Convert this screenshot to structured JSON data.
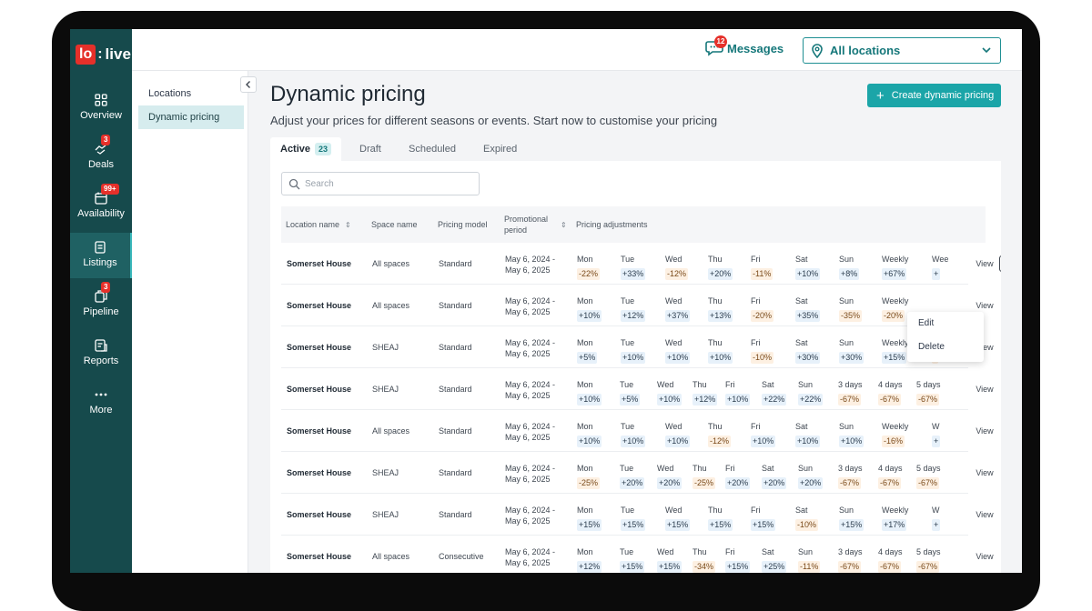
{
  "logo": {
    "lo": "lo",
    "live": "live"
  },
  "nav": [
    {
      "label": "Overview",
      "icon": "grid-icon",
      "badge": ""
    },
    {
      "label": "Deals",
      "icon": "handshake-icon",
      "badge": "3"
    },
    {
      "label": "Availability",
      "icon": "calendar-icon",
      "badge": "99+"
    },
    {
      "label": "Listings",
      "icon": "document-icon",
      "badge": ""
    },
    {
      "label": "Pipeline",
      "icon": "pipeline-icon",
      "badge": "3"
    },
    {
      "label": "Reports",
      "icon": "report-icon",
      "badge": ""
    },
    {
      "label": "More",
      "icon": "more-icon",
      "badge": ""
    }
  ],
  "topbar": {
    "messages_label": "Messages",
    "messages_count": "12",
    "location_selected": "All locations"
  },
  "sidebar": {
    "items": [
      "Locations",
      "Dynamic pricing"
    ]
  },
  "page": {
    "title": "Dynamic pricing",
    "subtitle": "Adjust your prices for different seasons or events. Start now to customise your pricing",
    "create_label": "Create dynamic pricing"
  },
  "tabs": [
    {
      "label": "Active",
      "count": "23"
    },
    {
      "label": "Draft",
      "count": ""
    },
    {
      "label": "Scheduled",
      "count": ""
    },
    {
      "label": "Expired",
      "count": ""
    }
  ],
  "search": {
    "placeholder": "Search"
  },
  "table": {
    "headers": [
      "Location name",
      "Space name",
      "Pricing model",
      "Promotional period",
      "Pricing adjustments"
    ],
    "view_label": "View",
    "menu": [
      "Edit",
      "Delete"
    ],
    "rows": [
      {
        "location": "Somerset House",
        "space": "All spaces",
        "model": "Standard",
        "period": [
          "May 6, 2024 -",
          "May 6, 2025"
        ],
        "adjustments": [
          [
            "Mon",
            "-22%"
          ],
          [
            "Tue",
            "+33%"
          ],
          [
            "Wed",
            "-12%"
          ],
          [
            "Thu",
            "+20%"
          ],
          [
            "Fri",
            "-11%"
          ],
          [
            "Sat",
            "+10%"
          ],
          [
            "Sun",
            "+8%"
          ],
          [
            "Weekly",
            "+67%"
          ],
          [
            "Wee",
            "+"
          ]
        ]
      },
      {
        "location": "Somerset House",
        "space": "All spaces",
        "model": "Standard",
        "period": [
          "May 6, 2024 -",
          "May 6, 2025"
        ],
        "adjustments": [
          [
            "Mon",
            "+10%"
          ],
          [
            "Tue",
            "+12%"
          ],
          [
            "Wed",
            "+37%"
          ],
          [
            "Thu",
            "+13%"
          ],
          [
            "Fri",
            "-20%"
          ],
          [
            "Sat",
            "+35%"
          ],
          [
            "Sun",
            "-35%"
          ],
          [
            "Weekly",
            "-20%"
          ]
        ]
      },
      {
        "location": "Somerset House",
        "space": "SHEAJ",
        "model": "Standard",
        "period": [
          "May 6, 2024 -",
          "May 6, 2025"
        ],
        "adjustments": [
          [
            "Mon",
            "+5%"
          ],
          [
            "Tue",
            "+10%"
          ],
          [
            "Wed",
            "+10%"
          ],
          [
            "Thu",
            "+10%"
          ],
          [
            "Fri",
            "-10%"
          ],
          [
            "Sat",
            "+30%"
          ],
          [
            "Sun",
            "+30%"
          ],
          [
            "Weekly",
            "+15%"
          ],
          [
            "W",
            "-"
          ]
        ]
      },
      {
        "location": "Somerset House",
        "space": "SHEAJ",
        "model": "Standard",
        "period": [
          "May 6, 2024 -",
          "May 6, 2025"
        ],
        "adjustments": [
          [
            "Mon",
            "+10%"
          ],
          [
            "Tue",
            "+5%"
          ],
          [
            "Wed",
            "+10%"
          ],
          [
            "Thu",
            "+12%"
          ],
          [
            "Fri",
            "+10%"
          ],
          [
            "Sat",
            "+22%"
          ],
          [
            "Sun",
            "+22%"
          ],
          [
            "3 days",
            "-67%"
          ],
          [
            "4 days",
            "-67%"
          ],
          [
            "5 days",
            "-67%"
          ]
        ]
      },
      {
        "location": "Somerset House",
        "space": "All spaces",
        "model": "Standard",
        "period": [
          "May 6, 2024 -",
          "May 6, 2025"
        ],
        "adjustments": [
          [
            "Mon",
            "+10%"
          ],
          [
            "Tue",
            "+10%"
          ],
          [
            "Wed",
            "+10%"
          ],
          [
            "Thu",
            "-12%"
          ],
          [
            "Fri",
            "+10%"
          ],
          [
            "Sat",
            "+10%"
          ],
          [
            "Sun",
            "+10%"
          ],
          [
            "Weekly",
            "-16%"
          ],
          [
            "W",
            "+"
          ]
        ]
      },
      {
        "location": "Somerset House",
        "space": "SHEAJ",
        "model": "Standard",
        "period": [
          "May 6, 2024 -",
          "May 6, 2025"
        ],
        "adjustments": [
          [
            "Mon",
            "-25%"
          ],
          [
            "Tue",
            "+20%"
          ],
          [
            "Wed",
            "+20%"
          ],
          [
            "Thu",
            "-25%"
          ],
          [
            "Fri",
            "+20%"
          ],
          [
            "Sat",
            "+20%"
          ],
          [
            "Sun",
            "+20%"
          ],
          [
            "3 days",
            "-67%"
          ],
          [
            "4 days",
            "-67%"
          ],
          [
            "5 days",
            "-67%"
          ]
        ]
      },
      {
        "location": "Somerset House",
        "space": "SHEAJ",
        "model": "Standard",
        "period": [
          "May 6, 2024 -",
          "May 6, 2025"
        ],
        "adjustments": [
          [
            "Mon",
            "+15%"
          ],
          [
            "Tue",
            "+15%"
          ],
          [
            "Wed",
            "+15%"
          ],
          [
            "Thu",
            "+15%"
          ],
          [
            "Fri",
            "+15%"
          ],
          [
            "Sat",
            "-10%"
          ],
          [
            "Sun",
            "+15%"
          ],
          [
            "Weekly",
            "+17%"
          ],
          [
            "W",
            "+"
          ]
        ]
      },
      {
        "location": "Somerset House",
        "space": "All spaces",
        "model": "Consecutive",
        "period": [
          "May 6, 2024 -",
          "May 6, 2025"
        ],
        "adjustments": [
          [
            "Mon",
            "+12%"
          ],
          [
            "Tue",
            "+15%"
          ],
          [
            "Wed",
            "+15%"
          ],
          [
            "Thu",
            "-34%"
          ],
          [
            "Fri",
            "+15%"
          ],
          [
            "Sat",
            "+25%"
          ],
          [
            "Sun",
            "-11%"
          ],
          [
            "3 days",
            "-67%"
          ],
          [
            "4 days",
            "-67%"
          ],
          [
            "5 days",
            "-67%"
          ]
        ]
      }
    ]
  },
  "colors": {
    "rail": "#164a4c",
    "accent": "#1ba5a8",
    "badge": "#e5302a"
  }
}
